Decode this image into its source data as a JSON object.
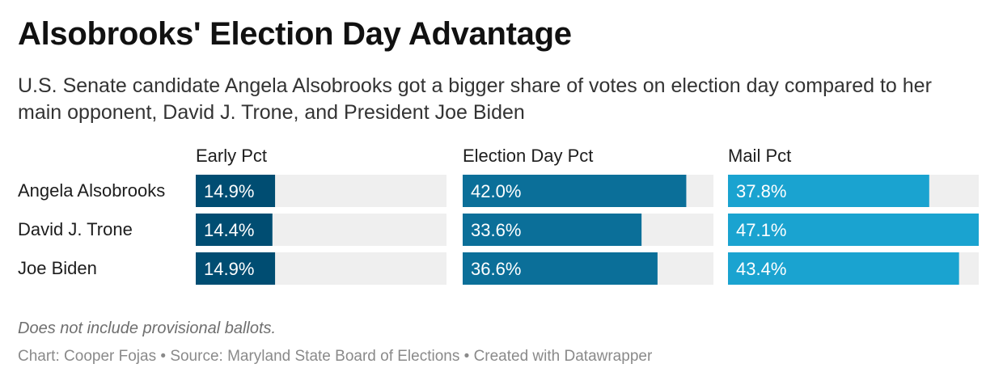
{
  "title": "Alsobrooks' Election Day Advantage",
  "subtitle": "U.S. Senate candidate Angela Alsobrooks got a bigger share of votes on election day compared to her main opponent, David J. Trone, and President Joe Biden",
  "note": "Does not include provisional ballots.",
  "footer": {
    "chart_label": "Chart:",
    "author": "Cooper Fojas",
    "source_label": "Source:",
    "source": "Maryland State Board of Elections",
    "created_with": "Created with Datawrapper",
    "separator": "•"
  },
  "colors": {
    "early": "#004d72",
    "election_day": "#0b6f99",
    "mail": "#1aa3d0",
    "track": "#efefef",
    "label_text": "#ffffff"
  },
  "chart_data": {
    "type": "bar",
    "orientation": "horizontal",
    "categories": [
      "Angela Alsobrooks",
      "David J. Trone",
      "Joe Biden"
    ],
    "series": [
      {
        "name": "Early Pct",
        "values": [
          14.9,
          14.4,
          14.9
        ],
        "labels": [
          "14.9%",
          "14.4%",
          "14.9%"
        ]
      },
      {
        "name": "Election Day Pct",
        "values": [
          42.0,
          33.6,
          36.6
        ],
        "labels": [
          "42.0%",
          "33.6%",
          "36.6%"
        ]
      },
      {
        "name": "Mail Pct",
        "values": [
          37.8,
          47.1,
          43.4
        ],
        "labels": [
          "37.8%",
          "47.1%",
          "43.4%"
        ]
      }
    ],
    "xlim": [
      0,
      47.1
    ],
    "title": "Alsobrooks' Election Day Advantage",
    "xlabel": "",
    "ylabel": "",
    "grid": false,
    "legend": "none"
  }
}
